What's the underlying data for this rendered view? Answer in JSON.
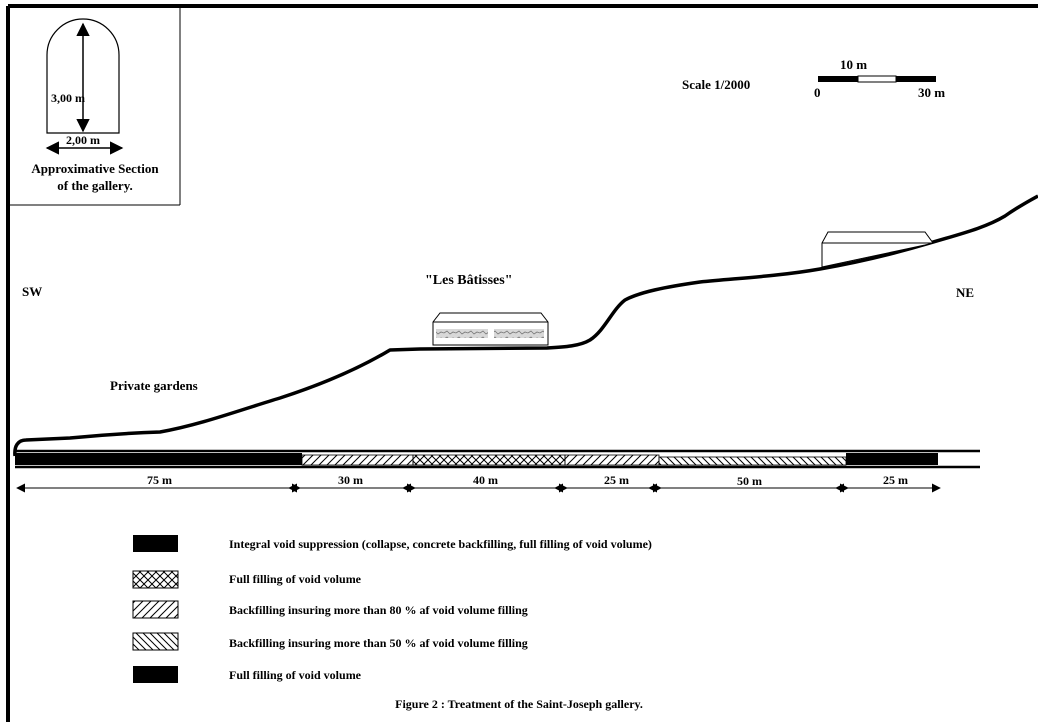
{
  "section": {
    "height_label": "3,00 m",
    "width_label": "2,00 m",
    "title_line1": "Approximative Section",
    "title_line2": "of the gallery."
  },
  "scale": {
    "label": "Scale 1/2000",
    "mid_label": "10 m",
    "start_label": "0",
    "end_label": "30 m"
  },
  "profile_labels": {
    "sw": "SW",
    "ne": "NE",
    "batisses": "\"Les Bâtisses\"",
    "gardens": "Private gardens"
  },
  "segments": [
    {
      "length": "75 m",
      "treatment": "integral"
    },
    {
      "length": "30 m",
      "treatment": "backfill-80"
    },
    {
      "length": "40 m",
      "treatment": "full-filling"
    },
    {
      "length": "25 m",
      "treatment": "backfill-80"
    },
    {
      "length": "50 m",
      "treatment": "backfill-50"
    },
    {
      "length": "25 m",
      "treatment": "full-filling-solid"
    }
  ],
  "legend": [
    {
      "pattern": "solid",
      "text": "Integral void suppression (collapse, concrete backfilling, full filling of void volume)"
    },
    {
      "pattern": "crosshatch",
      "text": "Full filling of void volume"
    },
    {
      "pattern": "forward-diagonal",
      "text": "Backfilling insuring more than 80 % af void volume filling"
    },
    {
      "pattern": "back-diagonal",
      "text": "Backfilling insuring more than 50 % af void volume filling"
    },
    {
      "pattern": "solid",
      "text": "Full filling of void volume"
    }
  ],
  "caption": "Figure 2 : Treatment of the Saint-Joseph gallery."
}
